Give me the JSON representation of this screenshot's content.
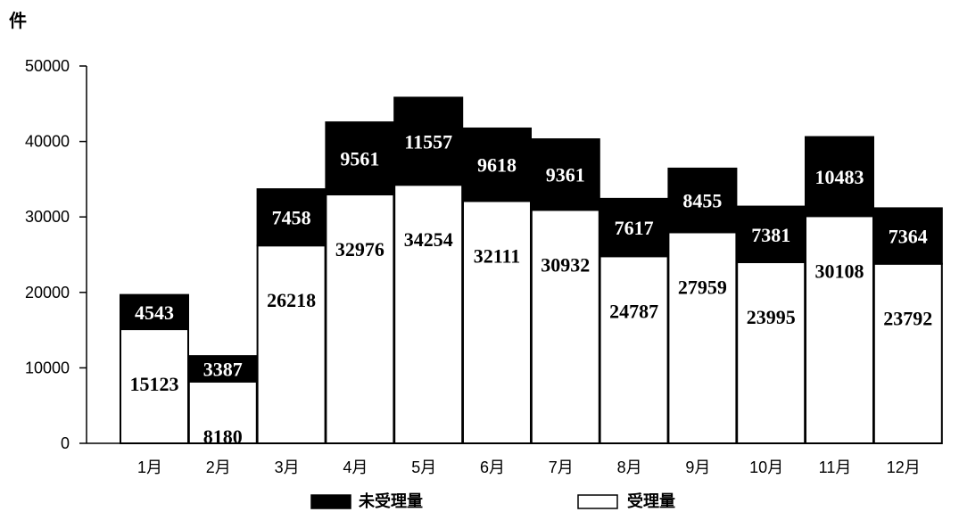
{
  "chart_data": {
    "type": "bar",
    "stacked": true,
    "ylabel": "件",
    "ylim": [
      0,
      50000
    ],
    "yticks": [
      "0",
      "10000",
      "20000",
      "30000",
      "40000",
      "50000"
    ],
    "categories": [
      "1月",
      "2月",
      "3月",
      "4月",
      "5月",
      "6月",
      "7月",
      "8月",
      "9月",
      "10月",
      "11月",
      "12月"
    ],
    "series": [
      {
        "name": "受理量",
        "color": "#ffffff",
        "values": [
          15123,
          8180,
          26218,
          32976,
          34254,
          32111,
          30932,
          24787,
          27959,
          23995,
          30108,
          23792
        ]
      },
      {
        "name": "未受理量",
        "color": "#000000",
        "values": [
          4543,
          3387,
          7458,
          9561,
          11557,
          9618,
          9361,
          7617,
          8455,
          7381,
          10483,
          7364
        ]
      }
    ],
    "legend_position": "bottom",
    "grid": false
  }
}
